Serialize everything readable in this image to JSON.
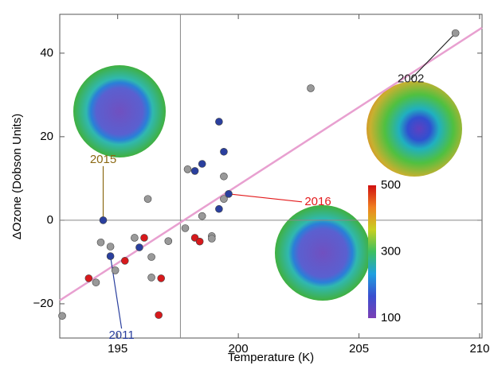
{
  "chart_data": {
    "type": "scatter",
    "xlabel": "Temperature (K)",
    "ylabel": "ΔOzone (Dobson Units)",
    "xlim": [
      192.6,
      210.1
    ],
    "ylim": [
      -28.2,
      49.3
    ],
    "xticks": [
      195,
      200,
      205,
      210
    ],
    "yticks": [
      {
        "value": -20,
        "label": "−20"
      },
      0,
      20,
      40
    ],
    "series": [
      {
        "color": "#999999",
        "x": [
          192.7,
          194.1,
          194.3,
          194.7,
          194.9,
          196.25,
          195.7,
          196.4,
          197.1,
          196.4,
          197.8,
          197.9,
          198.5,
          198.9,
          198.9,
          199.4,
          199.4,
          203.0,
          209.0
        ],
        "values": [
          -22.9,
          -14.9,
          -5.3,
          -6.3,
          -12.0,
          5.1,
          -4.2,
          -8.8,
          -5.0,
          -13.7,
          -1.9,
          12.2,
          1.0,
          -3.8,
          -4.4,
          10.5,
          5.1,
          31.6,
          44.8
        ]
      },
      {
        "color": "#2a3f9e",
        "x": [
          194.4,
          194.7,
          195.9,
          198.2,
          198.5,
          199.2,
          199.4,
          199.2,
          199.6
        ],
        "values": [
          0,
          -8.6,
          -6.5,
          11.8,
          13.5,
          23.6,
          16.4,
          2.7,
          6.3
        ]
      },
      {
        "color": "#d7191c",
        "x": [
          193.8,
          195.3,
          196.1,
          198.2,
          198.4,
          196.8,
          196.7
        ],
        "values": [
          -13.9,
          -9.7,
          -4.2,
          -4.2,
          -5.1,
          -13.9,
          -22.7
        ]
      }
    ],
    "fit_line": {
      "color": "#e8a0d0",
      "x": [
        192.6,
        210.1
      ],
      "values": [
        -19.2,
        46.1
      ]
    },
    "vline": 197.6,
    "hline": 0,
    "annotations": [
      {
        "text": "2015",
        "color": "#8b6914",
        "x": 194.4,
        "y": 0
      },
      {
        "text": "2011",
        "color": "#2a3f9e",
        "x": 194.7,
        "y": -8.6
      },
      {
        "text": "2016",
        "color": "#e31a1c",
        "x": 199.6,
        "y": 6.3
      },
      {
        "text": "2002",
        "color": "#222222",
        "x": 209.0,
        "y": 44.8
      }
    ],
    "colorbar": {
      "lim": [
        100,
        500
      ],
      "ticks": [
        100,
        300,
        500
      ],
      "colors": [
        "#7b3fb5",
        "#3a4fd0",
        "#1fa0e0",
        "#3cc060",
        "#c8d020",
        "#f08020",
        "#d01010"
      ]
    }
  }
}
